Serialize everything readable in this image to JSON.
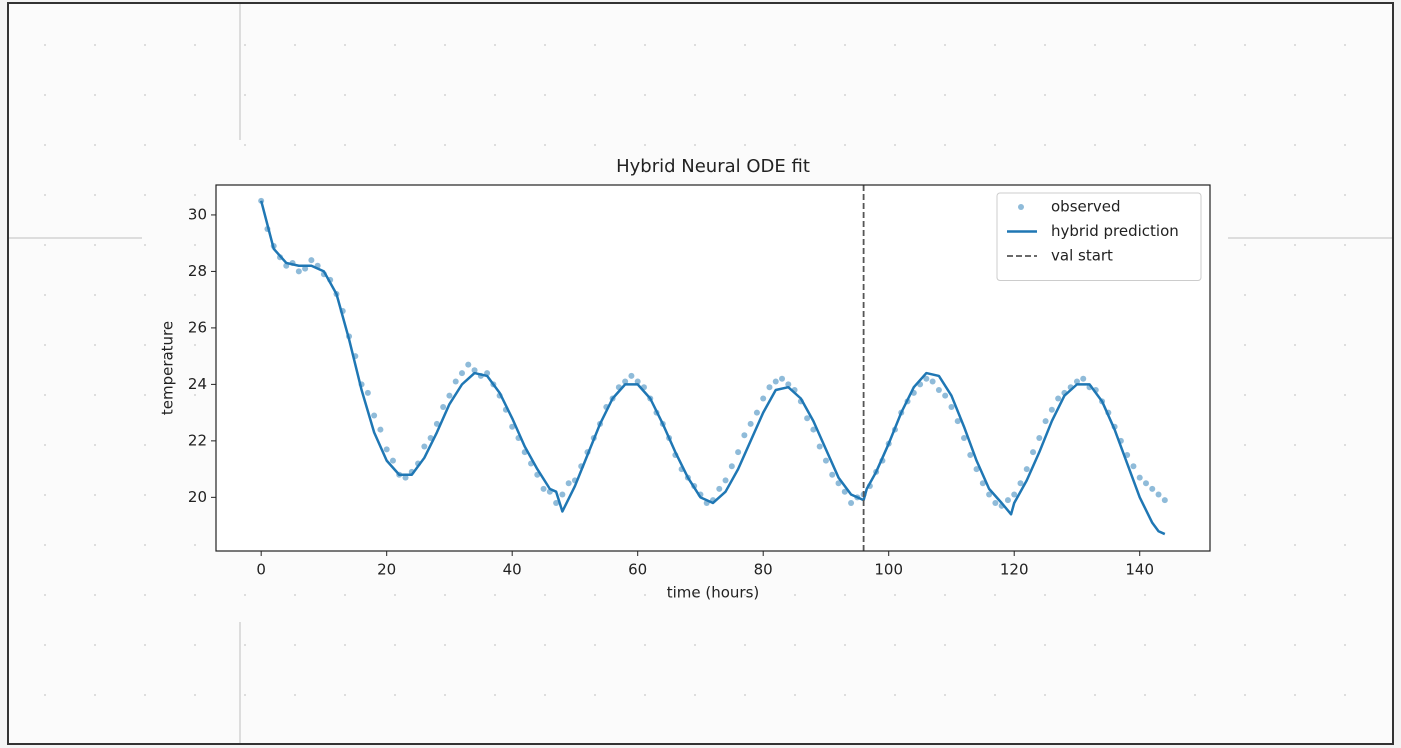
{
  "chart_data": {
    "type": "line",
    "title": "Hybrid Neural ODE fit",
    "xlabel": "time (hours)",
    "ylabel": "temperature",
    "xlim": [
      -7.2,
      151.2
    ],
    "ylim": [
      18.1,
      31.06
    ],
    "xticks": [
      0,
      20,
      40,
      60,
      80,
      100,
      120,
      140
    ],
    "yticks": [
      20,
      22,
      24,
      26,
      28,
      30
    ],
    "legend": "upper right",
    "series": [
      {
        "name": "observed",
        "type": "scatter",
        "color": "#1f77b4",
        "x": [
          0,
          1,
          2,
          3,
          4,
          5,
          6,
          7,
          8,
          9,
          10,
          11,
          12,
          13,
          14,
          15,
          16,
          17,
          18,
          19,
          20,
          21,
          22,
          23,
          24,
          25,
          26,
          27,
          28,
          29,
          30,
          31,
          32,
          33,
          34,
          35,
          36,
          37,
          38,
          39,
          40,
          41,
          42,
          43,
          44,
          45,
          46,
          47,
          48,
          49,
          50,
          51,
          52,
          53,
          54,
          55,
          56,
          57,
          58,
          59,
          60,
          61,
          62,
          63,
          64,
          65,
          66,
          67,
          68,
          69,
          70,
          71,
          72,
          73,
          74,
          75,
          76,
          77,
          78,
          79,
          80,
          81,
          82,
          83,
          84,
          85,
          86,
          87,
          88,
          89,
          90,
          91,
          92,
          93,
          94,
          95,
          96,
          97,
          98,
          99,
          100,
          101,
          102,
          103,
          104,
          105,
          106,
          107,
          108,
          109,
          110,
          111,
          112,
          113,
          114,
          115,
          116,
          117,
          118,
          119,
          120,
          121,
          122,
          123,
          124,
          125,
          126,
          127,
          128,
          129,
          130,
          131,
          132,
          133,
          134,
          135,
          136,
          137,
          138,
          139,
          140,
          141,
          142,
          143,
          144
        ],
        "values": [
          30.5,
          29.5,
          28.9,
          28.5,
          28.2,
          28.3,
          28.0,
          28.1,
          28.4,
          28.2,
          27.9,
          27.7,
          27.2,
          26.6,
          25.7,
          25.0,
          24.0,
          23.7,
          22.9,
          22.4,
          21.7,
          21.3,
          20.8,
          20.7,
          20.9,
          21.2,
          21.8,
          22.1,
          22.6,
          23.2,
          23.6,
          24.1,
          24.4,
          24.7,
          24.5,
          24.3,
          24.4,
          24.0,
          23.6,
          23.1,
          22.5,
          22.1,
          21.6,
          21.2,
          20.8,
          20.3,
          20.2,
          19.8,
          20.1,
          20.5,
          20.6,
          21.1,
          21.6,
          22.1,
          22.6,
          23.2,
          23.5,
          23.9,
          24.1,
          24.3,
          24.1,
          23.9,
          23.5,
          23.0,
          22.6,
          22.1,
          21.5,
          21.0,
          20.7,
          20.4,
          20.1,
          19.8,
          19.9,
          20.3,
          20.6,
          21.1,
          21.6,
          22.2,
          22.6,
          23.0,
          23.5,
          23.9,
          24.1,
          24.2,
          24.0,
          23.8,
          23.4,
          22.8,
          22.4,
          21.8,
          21.3,
          20.8,
          20.5,
          20.2,
          19.8,
          20.0,
          20.1,
          20.4,
          20.9,
          21.3,
          21.9,
          22.4,
          23.0,
          23.4,
          23.7,
          24.0,
          24.2,
          24.1,
          23.8,
          23.6,
          23.2,
          22.7,
          22.1,
          21.5,
          21.0,
          20.5,
          20.1,
          19.8,
          19.7,
          19.9,
          20.1,
          20.5,
          21.0,
          21.6,
          22.1,
          22.7,
          23.1,
          23.5,
          23.7,
          23.9,
          24.1,
          24.2,
          23.9,
          23.8,
          23.4,
          23.0,
          22.5,
          22.0,
          21.5,
          21.1,
          20.7,
          20.5,
          20.3,
          20.1,
          19.9
        ]
      },
      {
        "name": "hybrid prediction",
        "type": "line",
        "color": "#1f77b4",
        "x": [
          0,
          2,
          4,
          6,
          8,
          10,
          12,
          14,
          16,
          18,
          20,
          22,
          24,
          26,
          28,
          30,
          32,
          34,
          36,
          38,
          40,
          42,
          44,
          46,
          47,
          48,
          50,
          52,
          54,
          56,
          58,
          60,
          62,
          64,
          66,
          68,
          70,
          72,
          74,
          76,
          78,
          80,
          82,
          84,
          86,
          88,
          90,
          92,
          94,
          96,
          96.5,
          98,
          100,
          102,
          104,
          106,
          108,
          110,
          112,
          114,
          116,
          118,
          119.5,
          120,
          122,
          124,
          126,
          128,
          130,
          132,
          134,
          136,
          138,
          140,
          142,
          143,
          144
        ],
        "values": [
          30.5,
          28.8,
          28.3,
          28.2,
          28.2,
          28.0,
          27.2,
          25.6,
          23.8,
          22.3,
          21.3,
          20.8,
          20.8,
          21.4,
          22.3,
          23.3,
          24.0,
          24.4,
          24.3,
          23.7,
          22.8,
          21.8,
          21.0,
          20.3,
          20.2,
          19.5,
          20.4,
          21.5,
          22.6,
          23.5,
          24.0,
          24.0,
          23.5,
          22.6,
          21.6,
          20.7,
          20.0,
          19.8,
          20.2,
          21.0,
          22.0,
          23.0,
          23.8,
          23.9,
          23.5,
          22.7,
          21.7,
          20.7,
          20.1,
          19.9,
          20.3,
          20.9,
          21.9,
          23.0,
          23.9,
          24.4,
          24.3,
          23.6,
          22.5,
          21.3,
          20.3,
          19.8,
          19.4,
          19.8,
          20.6,
          21.6,
          22.7,
          23.6,
          24.0,
          24.0,
          23.4,
          22.4,
          21.2,
          20.0,
          19.1,
          18.8,
          18.7
        ]
      }
    ],
    "vlines": [
      {
        "name": "val start",
        "x": 96,
        "color": "#555555"
      }
    ]
  }
}
